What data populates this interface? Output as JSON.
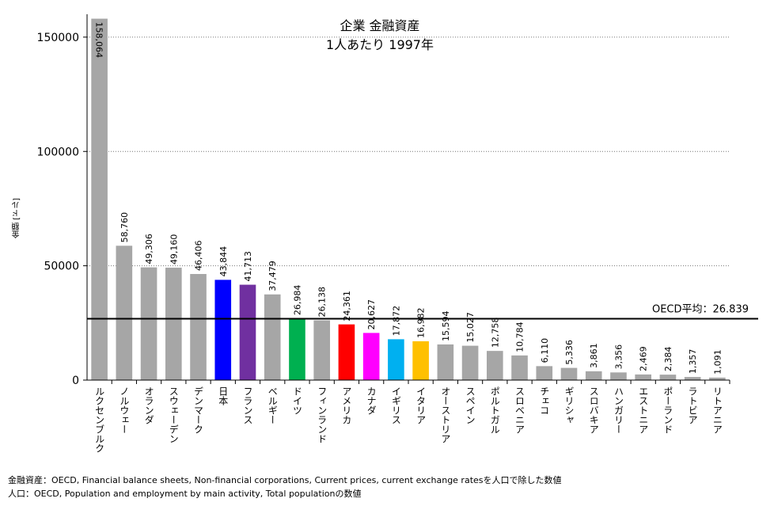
{
  "chart_data": {
    "type": "bar",
    "title_line1": "企業 金融資産",
    "title_line2": "1人あたり 1997年",
    "ylabel": "金額 [ドル]",
    "ylim": [
      0,
      160000
    ],
    "yticks": [
      "0",
      "50000",
      "100000",
      "150000"
    ],
    "ytick_values": [
      0,
      50000,
      100000,
      150000
    ],
    "grid": "horizontal dotted",
    "categories": [
      "ルクセンブルク",
      "ノルウェー",
      "オランダ",
      "スウェーデン",
      "デンマーク",
      "日本",
      "フランス",
      "ベルギー",
      "ドイツ",
      "フィンランド",
      "アメリカ",
      "カナダ",
      "イギリス",
      "イタリア",
      "オーストリア",
      "スペイン",
      "ポルトガル",
      "スロベニア",
      "チェコ",
      "ギリシャ",
      "スロバキア",
      "ハンガリー",
      "エストニア",
      "ポーランド",
      "ラトビア",
      "リトアニア"
    ],
    "values": [
      158064,
      58760,
      49306,
      49160,
      46406,
      43844,
      41713,
      37479,
      26984,
      26138,
      24361,
      20627,
      17872,
      16982,
      15594,
      15027,
      12758,
      10784,
      6110,
      5336,
      3861,
      3356,
      2469,
      2384,
      1357,
      1091
    ],
    "value_labels": [
      "158,064",
      "58,760",
      "49,306",
      "49,160",
      "46,406",
      "43,844",
      "41,713",
      "37,479",
      "26,984",
      "26,138",
      "24,361",
      "20,627",
      "17,872",
      "16,982",
      "15,594",
      "15,027",
      "12,758",
      "10,784",
      "6,110",
      "5,336",
      "3,861",
      "3,356",
      "2,469",
      "2,384",
      "1,357",
      "1,091"
    ],
    "colors": [
      "#a6a6a6",
      "#a6a6a6",
      "#a6a6a6",
      "#a6a6a6",
      "#a6a6a6",
      "#0000ff",
      "#7030a0",
      "#a6a6a6",
      "#00b050",
      "#a6a6a6",
      "#ff0000",
      "#ff00ff",
      "#00b0f0",
      "#ffc000",
      "#a6a6a6",
      "#a6a6a6",
      "#a6a6a6",
      "#a6a6a6",
      "#a6a6a6",
      "#a6a6a6",
      "#a6a6a6",
      "#a6a6a6",
      "#a6a6a6",
      "#a6a6a6",
      "#a6a6a6",
      "#a6a6a6"
    ],
    "reference_line": {
      "label": "OECD平均：26.839",
      "value": 26839
    }
  },
  "source": {
    "line1": "金融資産：OECD, Financial balance sheets, Non-financial corporations, Current prices, current exchange ratesを人口で除した数値",
    "line2": "人口：OECD, Population and employment by main activity, Total populationの数値"
  }
}
